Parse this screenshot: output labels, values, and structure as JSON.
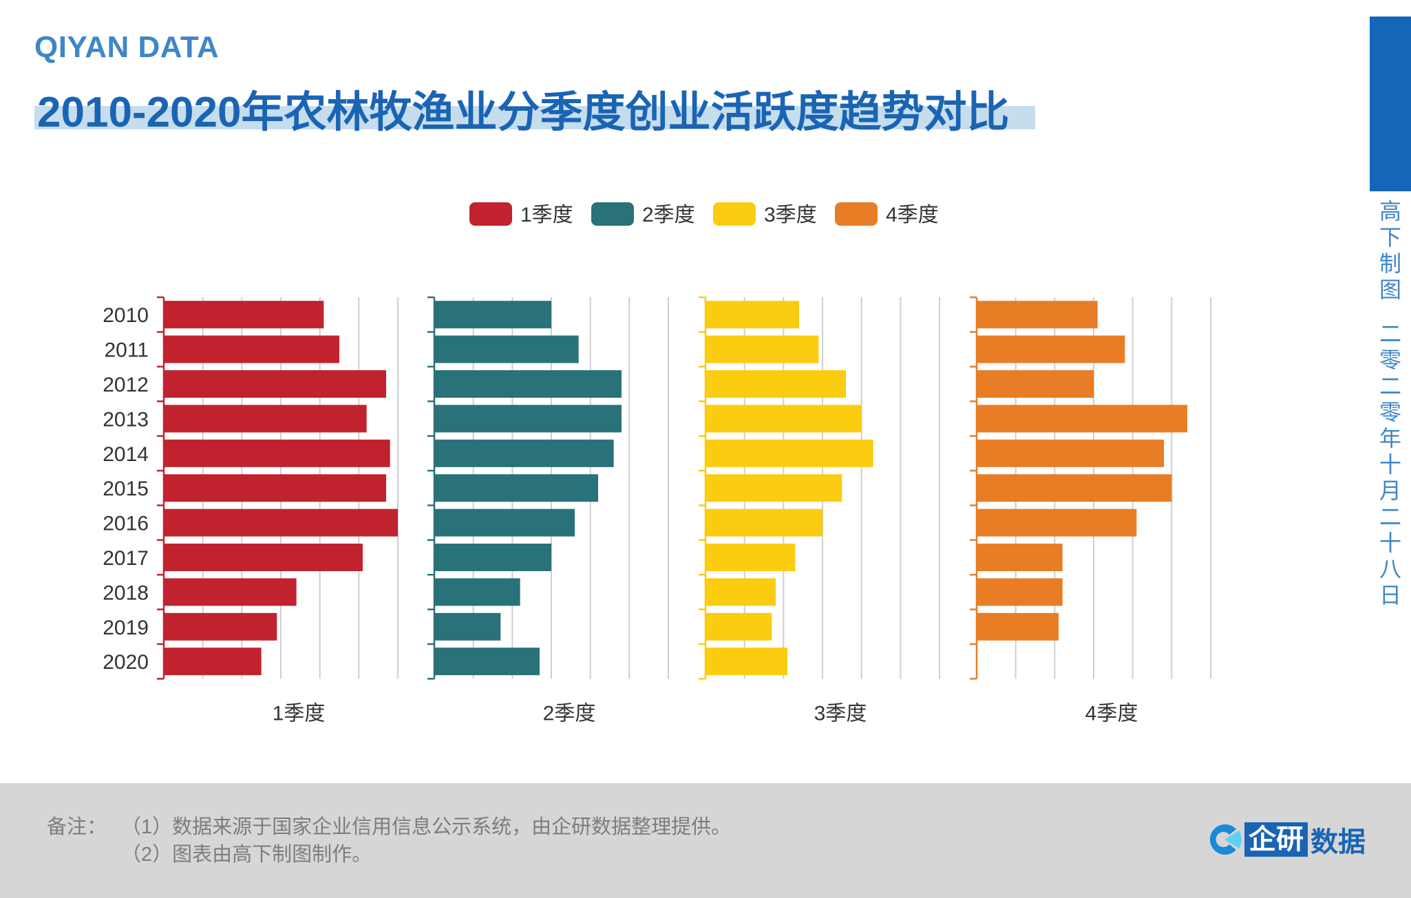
{
  "header": {
    "brand": "QIYAN DATA",
    "title": "2010-2020年农林牧渔业分季度创业活跃度趋势对比"
  },
  "side": {
    "line1": "高下制图",
    "line2": "二零二零年十月二十八日"
  },
  "chart_data": {
    "type": "bar",
    "orientation": "horizontal",
    "categories": [
      "2010",
      "2011",
      "2012",
      "2013",
      "2014",
      "2015",
      "2016",
      "2017",
      "2018",
      "2019",
      "2020"
    ],
    "xlim": [
      0,
      6
    ],
    "grid": true,
    "legend": "top-center",
    "series": [
      {
        "name": "1季度",
        "color": "#c0232e",
        "values": [
          4.1,
          4.5,
          5.7,
          5.2,
          5.8,
          5.7,
          6.0,
          5.1,
          3.4,
          2.9,
          2.5
        ]
      },
      {
        "name": "2季度",
        "color": "#2a7279",
        "values": [
          3.0,
          3.7,
          4.8,
          4.8,
          4.6,
          4.2,
          3.6,
          3.0,
          2.2,
          1.7,
          2.7
        ]
      },
      {
        "name": "3季度",
        "color": "#fbcc10",
        "values": [
          2.4,
          2.9,
          3.6,
          4.0,
          4.3,
          3.5,
          3.0,
          2.3,
          1.8,
          1.7,
          2.1
        ]
      },
      {
        "name": "4季度",
        "color": "#e87d25",
        "values": [
          3.1,
          3.8,
          3.0,
          5.4,
          4.8,
          5.0,
          4.1,
          2.2,
          2.2,
          2.1,
          0
        ]
      }
    ]
  },
  "footer": {
    "note_label": "备注：",
    "note_1": "（1）数据来源于国家企业信用信息公示系统，由企研数据整理提供。",
    "note_2": "（2）图表由高下制图制作。",
    "logo_main": "企研",
    "logo_rest": "数据"
  }
}
